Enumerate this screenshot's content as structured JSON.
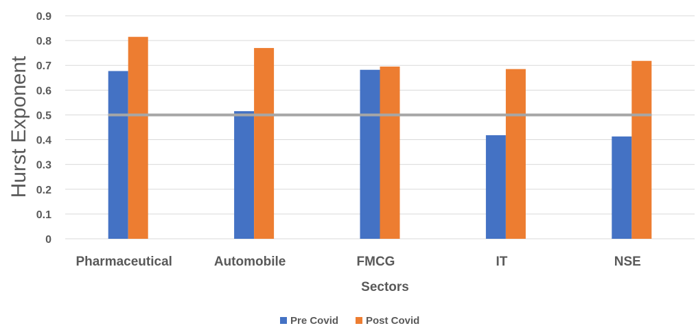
{
  "chart_data": {
    "type": "bar",
    "categories": [
      "Pharmaceutical",
      "Automobile",
      "FMCG",
      "IT",
      "NSE"
    ],
    "series": [
      {
        "name": "Pre Covid",
        "values": [
          0.677,
          0.515,
          0.682,
          0.418,
          0.413
        ],
        "color": "#4472C4"
      },
      {
        "name": "Post Covid",
        "values": [
          0.815,
          0.77,
          0.695,
          0.685,
          0.718
        ],
        "color": "#ED7D31"
      }
    ],
    "reference_line": {
      "value": 0.5,
      "color": "#A6A6A6"
    },
    "xlabel": "Sectors",
    "ylabel": "Hurst Exponent",
    "ylim": [
      0,
      0.9
    ],
    "yticks": [
      "0",
      "0.1",
      "0.2",
      "0.3",
      "0.4",
      "0.5",
      "0.6",
      "0.7",
      "0.8",
      "0.9"
    ],
    "grid": true,
    "legend_position": "bottom"
  }
}
